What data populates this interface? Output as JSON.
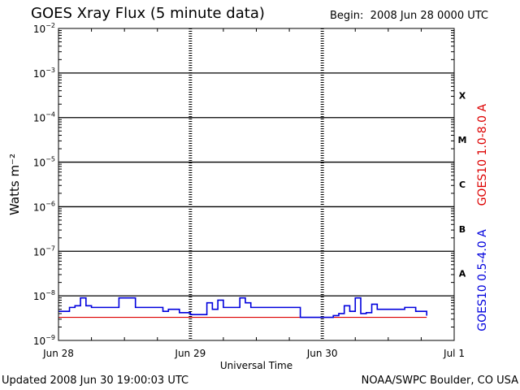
{
  "header": {
    "title": "GOES Xray Flux (5 minute data)",
    "begin_label": "Begin:",
    "begin_value": "2008 Jun 28 0000 UTC"
  },
  "footer": {
    "updated": "Updated 2008 Jun 30 19:00:03 UTC",
    "credit": "NOAA/SWPC Boulder, CO USA"
  },
  "colors": {
    "long_channel": "#dd0000",
    "short_channel": "#0000dd",
    "axis": "#000000",
    "background": "#ffffff"
  },
  "chart_data": {
    "type": "line",
    "title": "GOES Xray Flux (5 minute data)",
    "xlabel": "Universal Time",
    "ylabel": "Watts m⁻²",
    "y_scale": "log",
    "ylim": [
      1e-09,
      0.01
    ],
    "xlim": [
      "2008-06-28 00:00",
      "2008-07-01 00:00"
    ],
    "x_ticks": [
      "Jun 28",
      "Jun 29",
      "Jun 30",
      "Jul 1"
    ],
    "y_tick_exponents": [
      -9,
      -8,
      -7,
      -6,
      -5,
      -4,
      -3,
      -2
    ],
    "flare_classes": [
      "X",
      "M",
      "C",
      "B",
      "A"
    ],
    "legend_position": "right",
    "series": [
      {
        "name": "GOES10 1.0-8.0 A",
        "color": "#dd0000",
        "x": [
          "2008-06-28 00:00",
          "2008-06-28 12:00",
          "2008-06-29 00:00",
          "2008-06-29 12:00",
          "2008-06-29 20:00",
          "2008-06-30 08:00",
          "2008-06-30 19:00"
        ],
        "y": [
          3.3e-09,
          3.3e-09,
          3.3e-09,
          3.3e-09,
          3.3e-09,
          3.3e-09,
          3.3e-09
        ]
      },
      {
        "name": "GOES10 0.5-4.0 A",
        "color": "#0000dd",
        "x": [
          "2008-06-28 00:00",
          "2008-06-28 02:00",
          "2008-06-28 03:00",
          "2008-06-28 04:00",
          "2008-06-28 05:00",
          "2008-06-28 06:00",
          "2008-06-28 07:00",
          "2008-06-28 08:00",
          "2008-06-28 09:00",
          "2008-06-28 11:00",
          "2008-06-28 14:00",
          "2008-06-28 16:00",
          "2008-06-28 18:00",
          "2008-06-28 19:00",
          "2008-06-28 20:00",
          "2008-06-28 22:00",
          "2008-06-29 00:00",
          "2008-06-29 01:00",
          "2008-06-29 02:00",
          "2008-06-29 03:00",
          "2008-06-29 04:00",
          "2008-06-29 05:00",
          "2008-06-29 06:00",
          "2008-06-29 08:00",
          "2008-06-29 09:00",
          "2008-06-29 10:00",
          "2008-06-29 11:00",
          "2008-06-29 14:00",
          "2008-06-29 18:00",
          "2008-06-29 20:00",
          "2008-06-30 00:00",
          "2008-06-30 02:00",
          "2008-06-30 03:00",
          "2008-06-30 04:00",
          "2008-06-30 05:00",
          "2008-06-30 06:00",
          "2008-06-30 07:00",
          "2008-06-30 08:00",
          "2008-06-30 09:00",
          "2008-06-30 10:00",
          "2008-06-30 12:00",
          "2008-06-30 15:00",
          "2008-06-30 17:00",
          "2008-06-30 19:00"
        ],
        "y": [
          4.5e-09,
          5.5e-09,
          6e-09,
          9e-09,
          6e-09,
          5.5e-09,
          5.5e-09,
          5.5e-09,
          5.5e-09,
          9e-09,
          5.5e-09,
          5.5e-09,
          5.5e-09,
          4.5e-09,
          5e-09,
          4.2e-09,
          3.8e-09,
          3.8e-09,
          3.8e-09,
          7e-09,
          5e-09,
          8e-09,
          5.5e-09,
          5.5e-09,
          9e-09,
          7e-09,
          5.5e-09,
          5.5e-09,
          5.5e-09,
          3.3e-09,
          3.3e-09,
          3.6e-09,
          4e-09,
          6e-09,
          4.5e-09,
          9e-09,
          4e-09,
          4.2e-09,
          6.5e-09,
          5e-09,
          5e-09,
          5.5e-09,
          4.5e-09,
          3.6e-09
        ]
      }
    ]
  }
}
